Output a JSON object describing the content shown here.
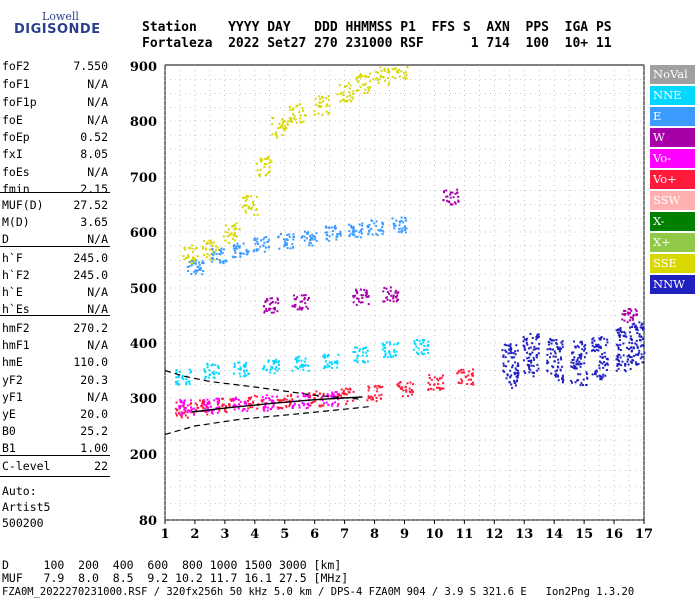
{
  "logo": {
    "top": "Lowell",
    "bottom": "DIGISONDE"
  },
  "header": {
    "line1": "Station    YYYY DAY   DDD HHMMSS P1  FFS S  AXN  PPS  IGA PS",
    "line2": "Fortaleza  2022 Set27 270 231000 RSF      1 714  100  10+ 11"
  },
  "params": [
    {
      "label": "foF2",
      "value": "7.550"
    },
    {
      "label": "foF1",
      "value": "N/A"
    },
    {
      "label": "foF1p",
      "value": "N/A"
    },
    {
      "label": "foE",
      "value": "N/A"
    },
    {
      "label": "foEp",
      "value": "0.52"
    },
    {
      "label": "fxI",
      "value": "8.05"
    },
    {
      "label": "foEs",
      "value": "N/A"
    },
    {
      "label": "fmin",
      "value": "2.15"
    },
    {
      "label": "MUF(D)",
      "value": "27.52"
    },
    {
      "label": "M(D)",
      "value": "3.65"
    },
    {
      "label": "D",
      "value": "N/A"
    },
    {
      "label": "h`F",
      "value": "245.0"
    },
    {
      "label": "h`F2",
      "value": "245.0"
    },
    {
      "label": "h`E",
      "value": "N/A"
    },
    {
      "label": "h`Es",
      "value": "N/A"
    },
    {
      "label": "hmF2",
      "value": "270.2"
    },
    {
      "label": "hmF1",
      "value": "N/A"
    },
    {
      "label": "hmE",
      "value": "110.0"
    },
    {
      "label": "yF2",
      "value": "20.3"
    },
    {
      "label": "yF1",
      "value": "N/A"
    },
    {
      "label": "yE",
      "value": "20.0"
    },
    {
      "label": "B0",
      "value": "25.2"
    },
    {
      "label": "B1",
      "value": "1.00"
    },
    {
      "label": "C-level",
      "value": "22"
    }
  ],
  "auto": {
    "line1": "Auto:",
    "line2": "Artist5",
    "line3": "500200"
  },
  "legend": [
    {
      "label": "NoVal",
      "color": "#a0a0a0"
    },
    {
      "label": "NNE",
      "color": "#00d8ff"
    },
    {
      "label": "E",
      "color": "#3c9bff"
    },
    {
      "label": "W",
      "color": "#a800a8"
    },
    {
      "label": "Vo-",
      "color": "#ff00ff"
    },
    {
      "label": "Vo+",
      "color": "#ff1a3c"
    },
    {
      "label": "SSW",
      "color": "#ffb0b0"
    },
    {
      "label": "X-",
      "color": "#008000"
    },
    {
      "label": "X+",
      "color": "#90c848"
    },
    {
      "label": "SSE",
      "color": "#d8d800"
    },
    {
      "label": "NNW",
      "color": "#2020c0"
    }
  ],
  "footer": {
    "line1": "D     100  200  400  600  800 1000 1500 3000 [km]",
    "line2": "MUF   7.9  8.0  8.5  9.2 10.2 11.7 16.1 27.5 [MHz]",
    "line3": "FZA0M_2022270231000.RSF / 320fx256h 50 kHz 5.0 km / DPS-4 FZA0M 904 / 3.9 S 321.6 E   Ion2Png 1.3.20"
  },
  "chart_data": {
    "type": "scatter",
    "title": "",
    "xlabel": "",
    "ylabel": "",
    "xlim": [
      1,
      17
    ],
    "ylim": [
      80,
      900
    ],
    "x_ticks": [
      1,
      2,
      3,
      4,
      5,
      6,
      7,
      8,
      9,
      10,
      11,
      12,
      13,
      14,
      15,
      16,
      17
    ],
    "y_ticks": [
      80,
      200,
      300,
      400,
      500,
      600,
      700,
      800,
      900
    ],
    "grid": "dotted",
    "legend_position": "right",
    "series": [
      {
        "name": "SSE",
        "points": [
          [
            1.8,
            560
          ],
          [
            2.5,
            570
          ],
          [
            3.2,
            600
          ],
          [
            3.8,
            650
          ],
          [
            4.3,
            720
          ],
          [
            4.8,
            790
          ],
          [
            5.4,
            815
          ],
          [
            6.2,
            830
          ],
          [
            7.0,
            855
          ],
          [
            7.6,
            870
          ],
          [
            8.2,
            885
          ],
          [
            8.8,
            895
          ]
        ]
      },
      {
        "name": "E",
        "points": [
          [
            2.0,
            540
          ],
          [
            2.8,
            560
          ],
          [
            3.5,
            570
          ],
          [
            4.2,
            580
          ],
          [
            5.0,
            585
          ],
          [
            5.8,
            590
          ],
          [
            6.6,
            600
          ],
          [
            7.3,
            605
          ],
          [
            8.0,
            610
          ],
          [
            8.8,
            615
          ]
        ]
      },
      {
        "name": "NNE",
        "points": [
          [
            1.6,
            340
          ],
          [
            2.5,
            350
          ],
          [
            3.5,
            355
          ],
          [
            4.5,
            360
          ],
          [
            5.5,
            365
          ],
          [
            6.5,
            370
          ],
          [
            7.5,
            380
          ],
          [
            8.5,
            390
          ],
          [
            9.5,
            395
          ]
        ]
      },
      {
        "name": "Vo+",
        "points": [
          [
            1.6,
            280
          ],
          [
            2.2,
            285
          ],
          [
            3.0,
            290
          ],
          [
            4.0,
            292
          ],
          [
            5.0,
            295
          ],
          [
            6.0,
            300
          ],
          [
            7.0,
            305
          ],
          [
            8.0,
            310
          ],
          [
            9.0,
            318
          ],
          [
            10.0,
            330
          ],
          [
            11.0,
            340
          ]
        ]
      },
      {
        "name": "NNW",
        "points": [
          [
            12.5,
            360
          ],
          [
            13.2,
            380
          ],
          [
            14.0,
            370
          ],
          [
            14.8,
            365
          ],
          [
            15.5,
            375
          ],
          [
            16.3,
            390
          ],
          [
            16.8,
            400
          ]
        ]
      },
      {
        "name": "W",
        "points": [
          [
            4.5,
            470
          ],
          [
            5.5,
            475
          ],
          [
            7.5,
            485
          ],
          [
            8.5,
            490
          ],
          [
            10.5,
            665
          ],
          [
            16.5,
            450
          ]
        ]
      },
      {
        "name": "Vo-",
        "points": [
          [
            1.7,
            285
          ],
          [
            2.5,
            288
          ],
          [
            3.5,
            290
          ],
          [
            4.5,
            293
          ],
          [
            5.5,
            297
          ],
          [
            6.5,
            300
          ]
        ]
      }
    ]
  }
}
